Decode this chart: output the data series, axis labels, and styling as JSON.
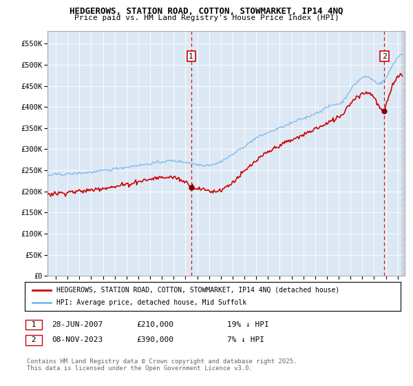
{
  "title": "HEDGEROWS, STATION ROAD, COTTON, STOWMARKET, IP14 4NQ",
  "subtitle": "Price paid vs. HM Land Registry's House Price Index (HPI)",
  "ytick_values": [
    0,
    50000,
    100000,
    150000,
    200000,
    250000,
    300000,
    350000,
    400000,
    450000,
    500000,
    550000
  ],
  "ylim": [
    0,
    580000
  ],
  "xlim_start": 1995.3,
  "xlim_end": 2025.6,
  "hpi_color": "#7ab8e8",
  "price_color": "#cc0000",
  "bg_color": "#dde8f5",
  "marker1_x": 2007.49,
  "marker1_y": 210000,
  "marker2_x": 2023.86,
  "marker2_y": 390000,
  "legend_line1": "HEDGEROWS, STATION ROAD, COTTON, STOWMARKET, IP14 4NQ (detached house)",
  "legend_line2": "HPI: Average price, detached house, Mid Suffolk",
  "annotation1_num": "1",
  "annotation1_date": "28-JUN-2007",
  "annotation1_price": "£210,000",
  "annotation1_hpi": "19% ↓ HPI",
  "annotation2_num": "2",
  "annotation2_date": "08-NOV-2023",
  "annotation2_price": "£390,000",
  "annotation2_hpi": "7% ↓ HPI",
  "footer": "Contains HM Land Registry data © Crown copyright and database right 2025.\nThis data is licensed under the Open Government Licence v3.0."
}
